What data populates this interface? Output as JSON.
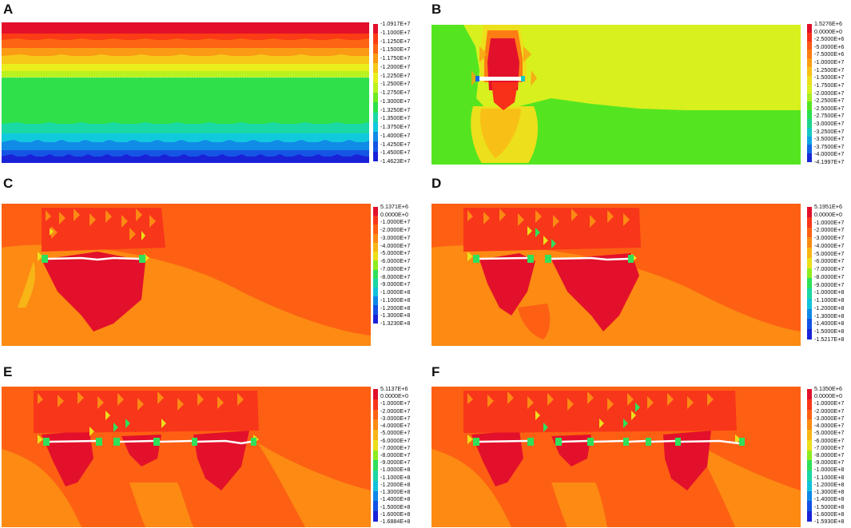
{
  "panels": [
    {
      "letter": "A",
      "colors": [
        "#e3102b",
        "#fb3c14",
        "#fd6413",
        "#fb9a14",
        "#f6c81a",
        "#e8ef1d",
        "#b9f21f",
        "#6fea20",
        "#2ee14b",
        "#1bd8a7",
        "#11c9dd",
        "#108be6",
        "#1555e5",
        "#1a22d8"
      ],
      "labels": [
        "-1.0917E+7",
        "-1.1000E+7",
        "-1.1250E+7",
        "-1.1500E+7",
        "-1.1750E+7",
        "-1.2000E+7",
        "-1.2250E+7",
        "-1.2500E+7",
        "-1.2750E+7",
        "-1.3000E+7",
        "-1.3250E+7",
        "-1.3500E+7",
        "-1.3750E+7",
        "-1.4000E+7",
        "-1.4250E+7",
        "-1.4500E+7",
        "-1.4623E+7"
      ]
    },
    {
      "letter": "B",
      "colors": [
        "#e3102b",
        "#f8301a",
        "#fd5815",
        "#fd7c13",
        "#fb9e14",
        "#f8c017",
        "#ecdf1b",
        "#d8f01e",
        "#a7ef20",
        "#55e520",
        "#2bdf4e",
        "#1ed58a",
        "#16c9c4",
        "#10a4e4",
        "#1366e6",
        "#1a2ad8"
      ],
      "labels": [
        "1.5276E+6",
        "0.0000E+0",
        "-2.5000E+6",
        "-5.0000E+6",
        "-7.5000E+6",
        "-1.0000E+7",
        "-1.2500E+7",
        "-1.5000E+7",
        "-1.7500E+7",
        "-2.0000E+7",
        "-2.2500E+7",
        "-2.5000E+7",
        "-2.7500E+7",
        "-3.0000E+7",
        "-3.2500E+7",
        "-3.5000E+7",
        "-3.7500E+7",
        "-4.0000E+7",
        "-4.1997E+7"
      ]
    },
    {
      "letter": "C",
      "colors": [
        "#e3102b",
        "#f8361a",
        "#fd6013",
        "#fc8a13",
        "#f8b616",
        "#ecdf1b",
        "#8eec1f",
        "#2fe05a",
        "#1bd7a3",
        "#12c2da",
        "#1088e7",
        "#1452e4",
        "#1a22d8"
      ],
      "labels": [
        "5.1371E+6",
        "0.0000E+0",
        "-1.0000E+7",
        "-2.0000E+7",
        "-3.0000E+7",
        "-4.0000E+7",
        "-5.0000E+7",
        "-6.0000E+7",
        "-7.0000E+7",
        "-8.0000E+7",
        "-9.0000E+7",
        "-1.0000E+8",
        "-1.1000E+8",
        "-1.2000E+8",
        "-1.3000E+8",
        "-1.3230E+8"
      ]
    },
    {
      "letter": "D",
      "colors": [
        "#e3102b",
        "#f8361a",
        "#fd6013",
        "#fc8a13",
        "#f8b616",
        "#ecdf1b",
        "#8eec1f",
        "#2fe05a",
        "#1bd7a3",
        "#12c2da",
        "#1088e7",
        "#1452e4",
        "#1a22d8"
      ],
      "labels": [
        "5.1951E+6",
        "0.0000E+0",
        "-1.0000E+7",
        "-2.0000E+7",
        "-3.0000E+7",
        "-4.0000E+7",
        "-5.0000E+7",
        "-6.0000E+7",
        "-7.0000E+7",
        "-8.0000E+7",
        "-9.0000E+7",
        "-1.0000E+8",
        "-1.1000E+8",
        "-1.2000E+8",
        "-1.3000E+8",
        "-1.4000E+8",
        "-1.5000E+8",
        "-1.5217E+8"
      ]
    },
    {
      "letter": "E",
      "colors": [
        "#e3102b",
        "#f8361a",
        "#fd6013",
        "#fc8a13",
        "#f8b616",
        "#ecdf1b",
        "#8eec1f",
        "#2fe05a",
        "#1bd7a3",
        "#12c2da",
        "#1088e7",
        "#1452e4",
        "#1a22d8"
      ],
      "labels": [
        "5.1137E+6",
        "0.0000E+0",
        "-1.0000E+7",
        "-2.0000E+7",
        "-3.0000E+7",
        "-4.0000E+7",
        "-5.0000E+7",
        "-6.0000E+7",
        "-7.0000E+7",
        "-8.0000E+7",
        "-9.0000E+7",
        "-1.0000E+8",
        "-1.1000E+8",
        "-1.2000E+8",
        "-1.3000E+8",
        "-1.4000E+8",
        "-1.5000E+8",
        "-1.6000E+8",
        "-1.6884E+8"
      ]
    },
    {
      "letter": "F",
      "colors": [
        "#e3102b",
        "#f8361a",
        "#fd6013",
        "#fc8a13",
        "#f8b616",
        "#ecdf1b",
        "#8eec1f",
        "#2fe05a",
        "#1bd7a3",
        "#12c2da",
        "#1088e7",
        "#1452e4",
        "#1a22d8"
      ],
      "labels": [
        "5.1350E+6",
        "0.0000E+0",
        "-1.0000E+7",
        "-2.0000E+7",
        "-3.0000E+7",
        "-4.0000E+7",
        "-5.0000E+7",
        "-6.0000E+7",
        "-7.0000E+7",
        "-8.0000E+7",
        "-9.0000E+7",
        "-1.0000E+8",
        "-1.1000E+8",
        "-1.2000E+8",
        "-1.3000E+8",
        "-1.4000E+8",
        "-1.5000E+8",
        "-1.6000E+8",
        "-1.5930E+8"
      ]
    }
  ]
}
